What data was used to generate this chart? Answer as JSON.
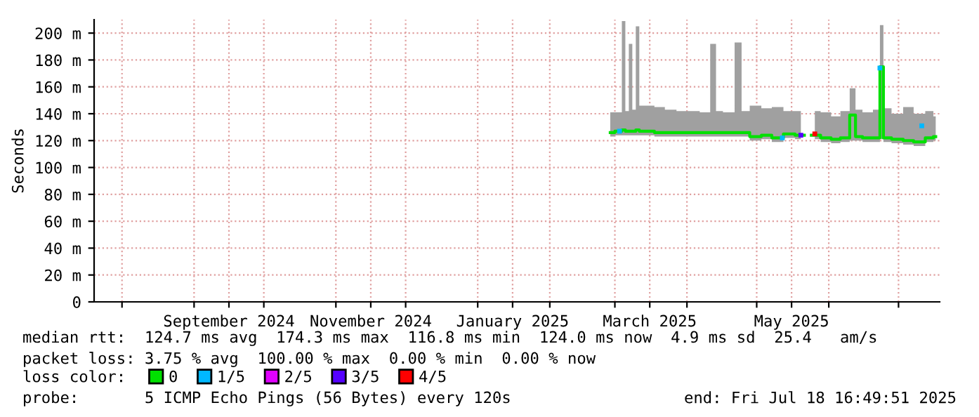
{
  "chart_data": {
    "type": "line",
    "ylabel": "Seconds",
    "legend_title": "loss color:",
    "legend": "bottom",
    "grid": true,
    "xlim": [
      "2024-07-20",
      "2025-07-18T16:49"
    ],
    "xticks": [
      {
        "value": "2024-08-01",
        "label": null
      },
      {
        "value": "2024-09-01",
        "label": null
      },
      {
        "value": "2024-09-16",
        "label": "September 2024"
      },
      {
        "value": "2024-10-01",
        "label": null
      },
      {
        "value": "2024-11-01",
        "label": null
      },
      {
        "value": "2024-11-16",
        "label": "November 2024"
      },
      {
        "value": "2024-12-01",
        "label": null
      },
      {
        "value": "2025-01-01",
        "label": null
      },
      {
        "value": "2025-01-16",
        "label": "January 2025"
      },
      {
        "value": "2025-02-01",
        "label": null
      },
      {
        "value": "2025-03-01",
        "label": null
      },
      {
        "value": "2025-03-16",
        "label": "March 2025"
      },
      {
        "value": "2025-04-01",
        "label": null
      },
      {
        "value": "2025-05-01",
        "label": null
      },
      {
        "value": "2025-05-16",
        "label": "May 2025"
      },
      {
        "value": "2025-06-01",
        "label": null
      },
      {
        "value": "2025-07-01",
        "label": null
      }
    ],
    "ylim": [
      0,
      210
    ],
    "yticks": [
      0,
      {
        "value": 20,
        "label": "20 m"
      },
      {
        "value": 40,
        "label": "40 m"
      },
      {
        "value": 60,
        "label": "60 m"
      },
      {
        "value": 80,
        "label": "80 m"
      },
      {
        "value": 100,
        "label": "100 m"
      },
      {
        "value": 120,
        "label": "120 m"
      },
      {
        "value": 140,
        "label": "140 m"
      },
      {
        "value": 160,
        "label": "160 m"
      },
      {
        "value": 180,
        "label": "180 m"
      },
      {
        "value": 200,
        "label": "200 m"
      }
    ],
    "series": [
      {
        "name": "0",
        "color": "#00e000",
        "x": [
          "2025-02-27",
          "2025-03-03",
          "2025-03-05",
          "2025-03-06",
          "2025-03-08",
          "2025-03-09",
          "2025-03-11",
          "2025-03-12",
          "2025-03-16",
          "2025-03-20",
          "2025-03-25",
          "2025-03-30",
          "2025-04-04",
          "2025-04-09",
          "2025-04-13",
          "2025-04-14",
          "2025-04-19",
          "2025-04-24",
          "2025-04-25",
          "2025-05-01",
          "2025-05-05",
          "2025-05-10",
          "2025-05-15",
          "2025-05-20",
          "2025-05-23",
          "2025-05-26",
          "2025-05-31",
          "2025-06-04",
          "2025-06-08",
          "2025-06-12",
          "2025-06-13",
          "2025-06-18",
          "2025-06-22",
          "2025-06-24",
          "2025-06-25",
          "2025-07-01",
          "2025-07-05",
          "2025-07-10",
          "2025-07-15",
          "2025-07-17"
        ],
        "values": [
          126,
          127,
          128,
          127,
          127,
          127,
          128,
          127,
          127,
          126,
          126,
          126,
          126,
          126,
          126,
          126,
          126,
          126,
          126,
          123,
          124,
          122,
          125,
          124,
          null,
          124,
          122,
          121,
          122,
          139,
          123,
          122,
          122,
          175,
          122,
          121,
          120,
          119,
          122,
          123
        ],
        "lower": [
          123,
          124,
          124,
          124,
          124,
          124,
          124,
          124,
          124,
          123,
          123,
          123,
          123,
          123,
          123,
          123,
          123,
          123,
          123,
          120,
          121,
          119,
          122,
          121,
          null,
          121,
          119,
          118,
          119,
          120,
          120,
          119,
          119,
          121,
          119,
          118,
          117,
          116,
          119,
          120
        ],
        "upper": [
          141,
          141,
          209,
          142,
          192,
          143,
          205,
          146,
          146,
          145,
          143,
          142,
          142,
          141,
          192,
          142,
          141,
          193,
          142,
          146,
          144,
          145,
          142,
          142,
          null,
          142,
          141,
          138,
          142,
          159,
          143,
          141,
          143,
          206,
          144,
          140,
          145,
          140,
          142,
          138
        ]
      },
      {
        "name": "1/5",
        "color": "#00b8ff",
        "type": "scatter",
        "x": [
          "2025-03-03",
          "2025-05-12",
          "2025-06-23",
          "2025-07-11"
        ],
        "values": [
          127,
          122,
          174,
          131
        ]
      },
      {
        "name": "2/5",
        "color": "#e000ff",
        "type": "scatter"
      },
      {
        "name": "3/5",
        "color": "#5500ff",
        "type": "scatter",
        "x": [
          "2025-05-20"
        ],
        "values": [
          124
        ]
      },
      {
        "name": "4/5",
        "color": "#ff0000",
        "type": "scatter",
        "x": [
          "2025-05-26"
        ],
        "values": [
          125
        ]
      }
    ],
    "annotations": [
      "median rtt:  124.7 ms avg  174.3 ms max  116.8 ms min  124.0 ms now  4.9 ms sd  25.4   am/s",
      "packet loss: 3.75 % avg  100.00 % max  0.00 % min  0.00 % now",
      "probe:       5 ICMP Echo Pings (56 Bytes) every 120s",
      "end: Fri Jul 18 16:49:51 2025"
    ]
  }
}
